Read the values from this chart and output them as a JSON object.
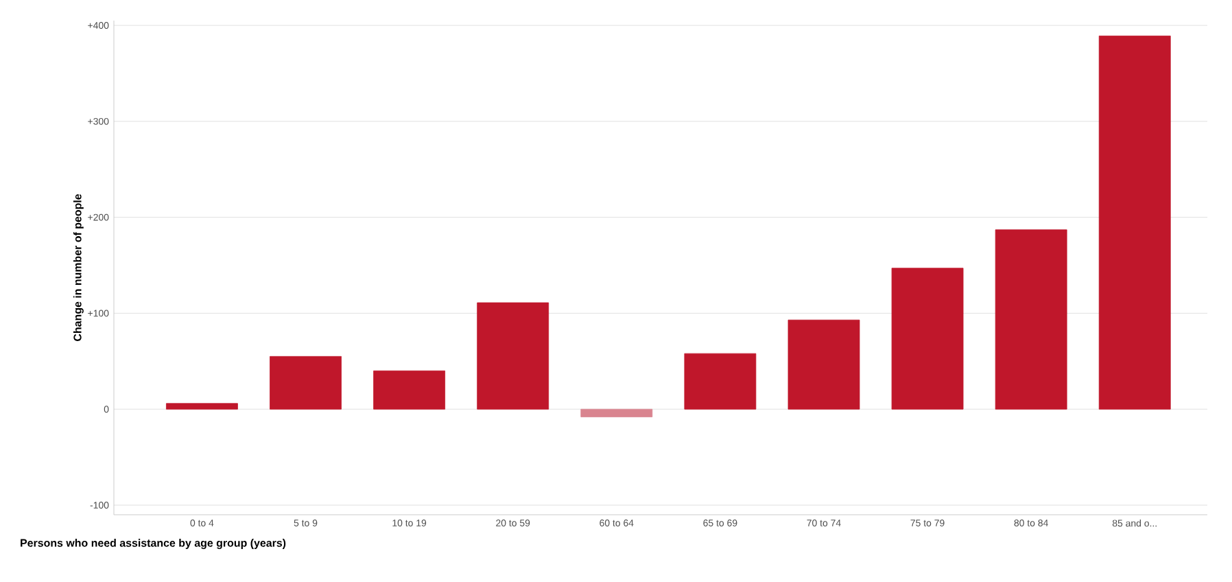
{
  "chart_data": {
    "type": "bar",
    "xlabel": "Persons who need assistance by age group (years)",
    "ylabel": "Change in number of people",
    "categories": [
      "0 to 4",
      "5 to 9",
      "10 to 19",
      "20 to 59",
      "60 to 64",
      "65 to 69",
      "70 to 74",
      "75 to 79",
      "80 to 84",
      "85 and o..."
    ],
    "values": [
      6,
      55,
      40,
      111,
      -8,
      58,
      93,
      147,
      187,
      389
    ],
    "colors": [
      "#c0172b",
      "#c0172b",
      "#c0172b",
      "#c0172b",
      "#d9848f",
      "#c0172b",
      "#c0172b",
      "#c0172b",
      "#c0172b",
      "#c0172b"
    ],
    "ylim": [
      -110,
      405
    ],
    "yticks": [
      {
        "value": -100,
        "label": "-100"
      },
      0,
      {
        "value": 100,
        "label": "+100"
      },
      {
        "value": 200,
        "label": "+200"
      },
      {
        "value": 300,
        "label": "+300"
      },
      {
        "value": 400,
        "label": "+400"
      }
    ],
    "grid": "y"
  }
}
